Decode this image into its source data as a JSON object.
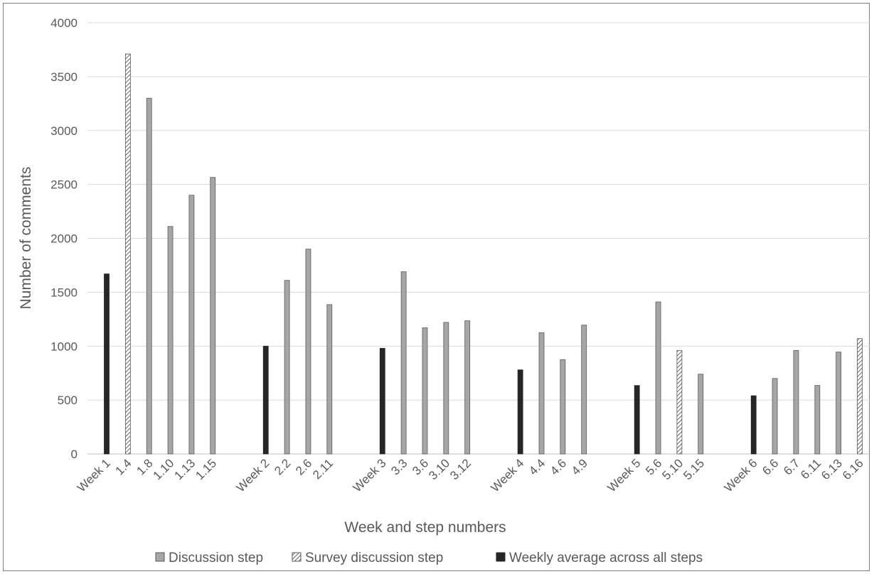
{
  "chart_data": {
    "type": "bar",
    "title": "",
    "xlabel": "Week and step numbers",
    "ylabel": "Number of comments",
    "ylim": [
      0,
      4000
    ],
    "yticks": [
      0,
      500,
      1000,
      1500,
      2000,
      2500,
      3000,
      3500,
      4000
    ],
    "grid": true,
    "legend_position": "bottom",
    "colors": {
      "discussion": "#a6a6a6",
      "survey": "#ffffff",
      "average": "#262626",
      "grid": "#d9d9d9",
      "text": "#595959"
    },
    "legend": [
      {
        "kind": "discussion",
        "label": "Discussion step"
      },
      {
        "kind": "survey",
        "label": "Survey discussion step"
      },
      {
        "kind": "average",
        "label": "Weekly average across all steps"
      }
    ],
    "categories": [
      "Week 1",
      "1.4",
      "1.8",
      "1.10",
      "1.13",
      "1.15",
      "Week 2",
      "2.2",
      "2.6",
      "2.11",
      "Week 3",
      "3.3",
      "3.6",
      "3.10",
      "3.12",
      "Week 4",
      "4.4",
      "4.6",
      "4.9",
      "Week 5",
      "5.6",
      "5.10",
      "5.15",
      "Week 6",
      "6.6",
      "6.7",
      "6.11",
      "6.13",
      "6.16"
    ],
    "kinds": [
      "average",
      "survey",
      "discussion",
      "discussion",
      "discussion",
      "discussion",
      "average",
      "discussion",
      "discussion",
      "discussion",
      "average",
      "discussion",
      "discussion",
      "discussion",
      "discussion",
      "average",
      "discussion",
      "discussion",
      "discussion",
      "average",
      "discussion",
      "survey",
      "discussion",
      "average",
      "discussion",
      "discussion",
      "discussion",
      "discussion",
      "survey"
    ],
    "values": [
      1670,
      3710,
      3300,
      2110,
      2400,
      2565,
      1000,
      1610,
      1900,
      1385,
      980,
      1690,
      1170,
      1220,
      1235,
      780,
      1125,
      875,
      1195,
      635,
      1410,
      960,
      740,
      540,
      700,
      960,
      635,
      945,
      1070
    ]
  }
}
